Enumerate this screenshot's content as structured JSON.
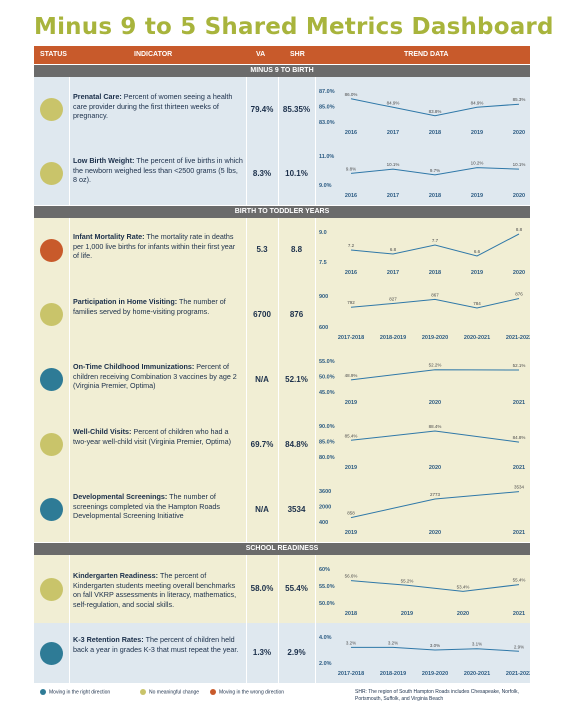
{
  "title": "Minus 9 to 5 Shared Metrics Dashboard",
  "header": {
    "status": "STATUS",
    "indicator": "INDICATOR",
    "va": "VA",
    "shr": "SHR",
    "trend": "TREND DATA"
  },
  "colors": {
    "blue": "#2e7b96",
    "yellow": "#c9c46a",
    "orange": "#c85a2b",
    "line": "#2f78a8"
  },
  "sections": [
    {
      "name": "MINUS 9 TO BIRTH"
    },
    {
      "name": "BIRTH TO TODDLER YEARS"
    },
    {
      "name": "SCHOOL READINESS"
    }
  ],
  "rows": [
    {
      "status": "yellow",
      "name": "Prenatal Care:",
      "desc": "Percent of women seeing a health care provider during the first thirteen weeks of pregnancy.",
      "va": "79.4%",
      "shr": "85.35%",
      "chart": {
        "x": [
          "2016",
          "2017",
          "2018",
          "2019",
          "2020"
        ],
        "y": [
          86.0,
          84.9,
          83.8,
          84.9,
          85.3
        ],
        "labels": [
          "86.0%",
          "84.9%",
          "83.8%",
          "84.9%",
          "85.3%"
        ],
        "ticks": [
          "87.0%",
          "85.0%",
          "83.0%"
        ],
        "ylim": [
          83.0,
          87.0
        ]
      }
    },
    {
      "status": "yellow",
      "name": "Low Birth Weight:",
      "desc": "The percent of live births in which the newborn weighed less than <2500 grams (5 lbs, 8 oz).",
      "va": "8.3%",
      "shr": "10.1%",
      "chart": {
        "x": [
          "2016",
          "2017",
          "2018",
          "2019",
          "2020"
        ],
        "y": [
          9.8,
          10.1,
          9.7,
          10.2,
          10.1
        ],
        "labels": [
          "9.8%",
          "10.1%",
          "9.7%",
          "10.2%",
          "10.1%"
        ],
        "ticks": [
          "11.0%",
          "9.0%"
        ],
        "ylim": [
          9.0,
          11.0
        ]
      }
    },
    {
      "status": "orange",
      "name": "Infant Mortality Rate:",
      "desc": "The mortality rate in deaths per 1,000 live births for infants within their first year of life.",
      "va": "5.3",
      "shr": "8.8",
      "chart": {
        "x": [
          "2016",
          "2017",
          "2018",
          "2019",
          "2020"
        ],
        "y": [
          7.2,
          6.8,
          7.7,
          6.6,
          8.8
        ],
        "labels": [
          "7.2",
          "6.8",
          "7.7",
          "6.6",
          "8.8"
        ],
        "ticks": [
          "9.0",
          "7.5"
        ],
        "ylim": [
          6.0,
          9.0
        ]
      }
    },
    {
      "status": "yellow",
      "name": "Participation in Home Visiting:",
      "desc": "The number of families served by home-visiting programs.",
      "va": "6700",
      "shr": "876",
      "chart": {
        "x": [
          "2017-2018",
          "2018-2019",
          "2019-2020",
          "2020-2021",
          "2021-2022"
        ],
        "y": [
          792,
          827,
          867,
          784,
          876
        ],
        "labels": [
          "792",
          "827",
          "867",
          "784",
          "876"
        ],
        "ticks": [
          "900",
          "600"
        ],
        "ylim": [
          600,
          900
        ]
      }
    },
    {
      "status": "blue",
      "name": "On-Time Childhood Immunizations:",
      "desc": "Percent of children receiving Combination 3 vaccines by age 2 (Virginia Premier, Optima)",
      "va": "N/A",
      "shr": "52.1%",
      "chart": {
        "x": [
          "2019",
          "2020",
          "2021"
        ],
        "y": [
          48.9,
          52.2,
          52.1
        ],
        "labels": [
          "48.9%",
          "52.2%",
          "52.1%"
        ],
        "ticks": [
          "55.0%",
          "50.0%",
          "45.0%"
        ],
        "ylim": [
          45.0,
          55.0
        ]
      }
    },
    {
      "status": "yellow",
      "name": "Well-Child Visits:",
      "desc": "Percent of children who had a two-year well-child visit (Virginia Premier, Optima)",
      "va": "69.7%",
      "shr": "84.8%",
      "chart": {
        "x": [
          "2019",
          "2020",
          "2021"
        ],
        "y": [
          85.4,
          88.4,
          84.8
        ],
        "labels": [
          "85.4%",
          "88.4%",
          "84.8%"
        ],
        "ticks": [
          "90.0%",
          "85.0%",
          "80.0%"
        ],
        "ylim": [
          80.0,
          90.0
        ]
      }
    },
    {
      "status": "blue",
      "name": "Developmental Screenings:",
      "desc": "The number of screenings completed via the Hampton Roads Developmental Screening Initiative",
      "va": "N/A",
      "shr": "3534",
      "chart": {
        "x": [
          "2019",
          "2020",
          "2021"
        ],
        "y": [
          858,
          2773,
          3534
        ],
        "labels": [
          "858",
          "2773",
          "3534"
        ],
        "ticks": [
          "3600",
          "2000",
          "400"
        ],
        "ylim": [
          400,
          3600
        ]
      }
    },
    {
      "status": "yellow",
      "name": "Kindergarten Readiness:",
      "desc": "The percent of Kindergarten students meeting overall benchmarks on fall VKRP assessments in literacy, mathematics, self-regulation, and social skills.",
      "va": "58.0%",
      "shr": "55.4%",
      "chart": {
        "x": [
          "2018",
          "2019",
          "2020",
          "2021"
        ],
        "y": [
          56.6,
          55.2,
          53.4,
          55.4
        ],
        "labels": [
          "56.6%",
          "55.2%",
          "53.4%",
          "55.4%"
        ],
        "ticks": [
          "60%",
          "55.0%",
          "50.0%"
        ],
        "ylim": [
          50.0,
          60.0
        ]
      }
    },
    {
      "status": "blue",
      "name": "K-3 Retention Rates:",
      "desc": "The percent of children held back a year in grades K-3 that must repeat the year.",
      "va": "1.3%",
      "shr": "2.9%",
      "chart": {
        "x": [
          "2017-2018",
          "2018-2019",
          "2019-2020",
          "2020-2021",
          "2021-2022"
        ],
        "y": [
          3.2,
          3.2,
          3.0,
          3.1,
          2.9
        ],
        "labels": [
          "3.2%",
          "3.2%",
          "3.0%",
          "3.1%",
          "2.9%"
        ],
        "ticks": [
          "4.0%",
          "2.0%"
        ],
        "ylim": [
          2.0,
          4.0
        ]
      }
    }
  ],
  "legend": {
    "right": "Moving in the right direction",
    "none": "No meaningful change",
    "wrong": "Moving in the wrong direction"
  },
  "footnote": "SHR: The region of South Hampton Roads includes Chesapeake, Norfolk, Portsmouth, Suffolk, and Virginia Beach"
}
